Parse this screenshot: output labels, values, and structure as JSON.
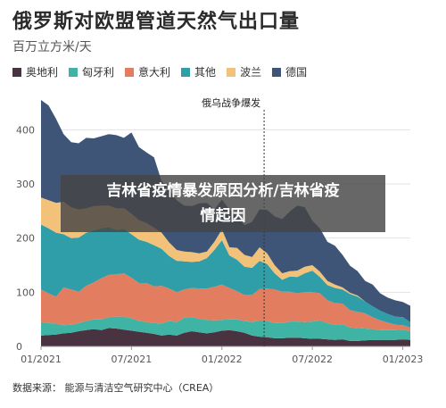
{
  "header": {
    "title": "俄罗斯对欧盟管道天然气出口量",
    "subtitle": "百万立方米/天"
  },
  "footer": {
    "source": "数据来源：   能源与清洁空气研究中心（CREA）"
  },
  "overlay": {
    "line1": "吉林省疫情暴发原因分析/吉林省疫",
    "line2": "情起因"
  },
  "chart_data": {
    "type": "area",
    "stacked": true,
    "title": "俄罗斯对欧盟管道天然气出口量",
    "ylabel": "百万立方米/天",
    "ylim": [
      0,
      450
    ],
    "yticks": [
      0,
      100,
      200,
      300,
      400
    ],
    "xticks": [
      "01/2021",
      "07/2021",
      "01/2022",
      "07/2022",
      "01/2023"
    ],
    "xrange_months": [
      0,
      24.5
    ],
    "grid": true,
    "legend_position": "top",
    "annotation": {
      "text": "俄乌战争爆发",
      "x_month": 14.8
    },
    "x_months": [
      0,
      0.5,
      1,
      1.5,
      2,
      2.5,
      3,
      3.5,
      4,
      4.5,
      5,
      5.5,
      6,
      6.5,
      7,
      7.5,
      8,
      8.5,
      9,
      9.5,
      10,
      10.5,
      11,
      11.5,
      12,
      12.5,
      13,
      13.5,
      14,
      14.5,
      15,
      15.5,
      16,
      16.5,
      17,
      17.5,
      18,
      18.5,
      19,
      19.5,
      20,
      20.5,
      21,
      21.5,
      22,
      22.5,
      23,
      23.5,
      24,
      24.5
    ],
    "series": [
      {
        "name": "奥地利",
        "color": "#4a3340",
        "values": [
          20,
          21,
          22,
          24,
          25,
          28,
          30,
          32,
          30,
          34,
          33,
          31,
          29,
          27,
          25,
          23,
          20,
          22,
          20,
          25,
          28,
          26,
          24,
          26,
          29,
          30,
          28,
          25,
          20,
          18,
          17,
          15,
          15,
          16,
          16,
          15,
          14,
          14,
          13,
          12,
          13,
          10,
          10,
          11,
          12,
          12,
          12,
          12,
          13,
          12
        ]
      },
      {
        "name": "匈牙利",
        "color": "#3fb3a4",
        "values": [
          25,
          22,
          20,
          15,
          15,
          15,
          17,
          18,
          20,
          20,
          22,
          24,
          23,
          20,
          20,
          20,
          22,
          25,
          25,
          28,
          26,
          25,
          25,
          22,
          20,
          20,
          22,
          22,
          25,
          30,
          30,
          28,
          28,
          30,
          30,
          30,
          32,
          34,
          30,
          28,
          28,
          25,
          24,
          22,
          20,
          18,
          18,
          18,
          18,
          16
        ]
      },
      {
        "name": "意大利",
        "color": "#e27d60",
        "values": [
          60,
          55,
          50,
          70,
          65,
          58,
          65,
          68,
          76,
          78,
          78,
          80,
          75,
          70,
          72,
          68,
          70,
          60,
          55,
          52,
          54,
          56,
          58,
          62,
          65,
          58,
          52,
          48,
          50,
          58,
          60,
          62,
          58,
          55,
          52,
          55,
          54,
          50,
          42,
          40,
          38,
          32,
          30,
          28,
          22,
          18,
          14,
          10,
          8,
          7
        ]
      },
      {
        "name": "其他",
        "color": "#2f9ea8",
        "values": [
          120,
          120,
          118,
          98,
          95,
          100,
          98,
          96,
          92,
          88,
          82,
          82,
          80,
          80,
          76,
          76,
          68,
          60,
          58,
          52,
          48,
          50,
          56,
          68,
          82,
          60,
          58,
          52,
          50,
          52,
          45,
          30,
          22,
          28,
          30,
          35,
          40,
          30,
          28,
          28,
          26,
          30,
          28,
          22,
          20,
          18,
          16,
          15,
          15,
          10
        ]
      },
      {
        "name": "波兰",
        "color": "#f2c27a",
        "values": [
          50,
          52,
          55,
          60,
          57,
          52,
          45,
          45,
          42,
          40,
          40,
          38,
          38,
          36,
          35,
          32,
          30,
          25,
          20,
          18,
          18,
          15,
          12,
          15,
          20,
          15,
          22,
          22,
          20,
          25,
          20,
          15,
          12,
          10,
          12,
          12,
          10,
          10,
          8,
          6,
          4,
          2,
          2,
          0,
          0,
          0,
          0,
          0,
          0,
          0
        ]
      },
      {
        "name": "德国",
        "color": "#3e5577",
        "values": [
          180,
          175,
          155,
          125,
          120,
          122,
          130,
          125,
          128,
          132,
          135,
          130,
          150,
          135,
          130,
          130,
          95,
          98,
          92,
          85,
          85,
          92,
          90,
          60,
          55,
          70,
          60,
          55,
          65,
          70,
          80,
          90,
          100,
          110,
          120,
          110,
          82,
          80,
          72,
          72,
          60,
          50,
          45,
          38,
          40,
          32,
          30,
          30,
          28,
          30
        ]
      }
    ]
  }
}
